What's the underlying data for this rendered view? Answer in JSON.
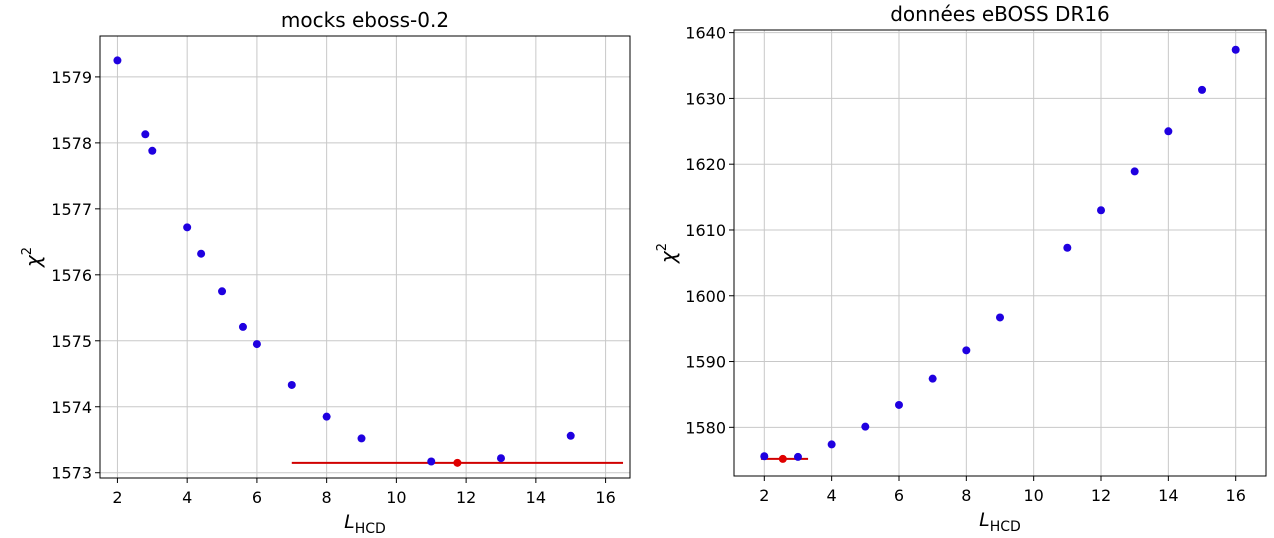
{
  "chart_data": [
    {
      "type": "scatter",
      "title": "mocks eboss-0.2",
      "xlabel": "L",
      "xlabel_sub": "HCD",
      "ylabel": "χ",
      "ylabel_sup": "2",
      "xlim": [
        1.5,
        16.7
      ],
      "ylim": [
        1572.92,
        1579.62
      ],
      "xticks": [
        2,
        4,
        6,
        8,
        10,
        12,
        14,
        16
      ],
      "yticks": [
        1573,
        1574,
        1575,
        1576,
        1577,
        1578,
        1579
      ],
      "grid": true,
      "point_color": "#1f00e0",
      "best_color": "#e00000",
      "line_color": "#d00000",
      "x": [
        2,
        2.8,
        3,
        4,
        4.4,
        5,
        5.6,
        6,
        7,
        8,
        9,
        11,
        13,
        15
      ],
      "y": [
        1579.25,
        1578.13,
        1577.88,
        1576.72,
        1576.32,
        1575.75,
        1575.21,
        1574.95,
        1574.33,
        1573.85,
        1573.52,
        1573.17,
        1573.22,
        1573.56
      ],
      "best": {
        "x": 11.75,
        "y": 1573.15
      },
      "hline": {
        "y": 1573.15,
        "x_from": 7,
        "x_to": 16.5
      }
    },
    {
      "type": "scatter",
      "title": "données eBOSS DR16",
      "xlabel": "L",
      "xlabel_sub": "HCD",
      "ylabel": "χ",
      "ylabel_sup": "2",
      "xlim": [
        1.1,
        16.9
      ],
      "ylim": [
        1572.6,
        1640.4
      ],
      "xticks": [
        2,
        4,
        6,
        8,
        10,
        12,
        14,
        16
      ],
      "yticks": [
        1580,
        1590,
        1600,
        1610,
        1620,
        1630,
        1640
      ],
      "grid": true,
      "point_color": "#1f00e0",
      "best_color": "#e00000",
      "line_color": "#d00000",
      "x": [
        2,
        3,
        4,
        5,
        6,
        7,
        8,
        9,
        11,
        12,
        13,
        14,
        15,
        16
      ],
      "y": [
        1575.6,
        1575.5,
        1577.4,
        1580.1,
        1583.4,
        1587.4,
        1591.7,
        1596.7,
        1607.3,
        1613.0,
        1618.9,
        1625.0,
        1631.3,
        1637.4
      ],
      "best": {
        "x": 2.55,
        "y": 1575.2
      },
      "hline": {
        "y": 1575.2,
        "x_from": 1.9,
        "x_to": 3.3
      }
    }
  ]
}
